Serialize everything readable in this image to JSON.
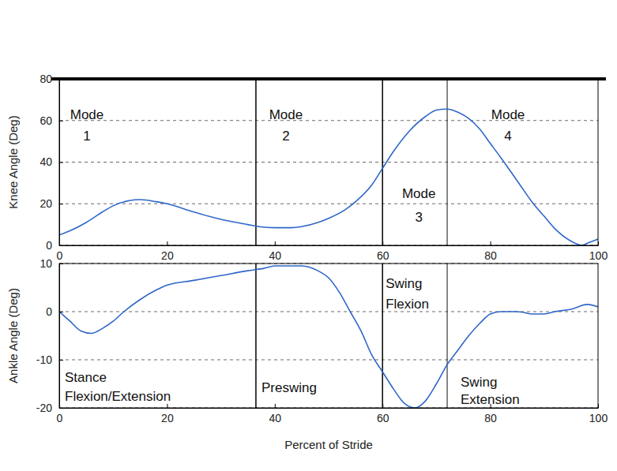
{
  "chart_data": [
    {
      "type": "line",
      "ylabel": "Knee Angle (Deg)",
      "x": [
        0,
        2,
        5,
        8,
        10,
        13,
        15,
        18,
        20,
        25,
        30,
        35,
        37,
        40,
        43,
        45,
        48,
        50,
        53,
        55,
        58,
        60,
        62,
        65,
        68,
        70,
        72,
        74,
        76,
        78,
        80,
        82,
        85,
        88,
        90,
        92,
        95,
        97,
        98,
        100
      ],
      "values": [
        5,
        7,
        11,
        16,
        19,
        21.5,
        22,
        21,
        20,
        16,
        12.5,
        10,
        9,
        8.5,
        8.5,
        9,
        11,
        13,
        17,
        21,
        29,
        37,
        45,
        55,
        62,
        65,
        65.5,
        64,
        61,
        56,
        49,
        42,
        31,
        20,
        14,
        8,
        2,
        0,
        1,
        3
      ],
      "color": "#2f67c8",
      "xlim": [
        0,
        100
      ],
      "xticks": [
        0,
        20,
        40,
        60,
        80,
        100
      ],
      "ylim": [
        0,
        80
      ],
      "yticks": [
        0,
        20,
        40,
        60,
        80
      ],
      "grid": true,
      "boundaries": [
        36.5,
        60,
        72
      ],
      "annotations": [
        "Mode 1",
        "Mode 2",
        "Mode 3",
        "Mode 4"
      ]
    },
    {
      "type": "line",
      "ylabel": "Ankle Angle (Deg)",
      "xlabel": "Percent of Stride",
      "x": [
        0,
        2,
        4,
        6,
        8,
        10,
        12,
        15,
        18,
        20,
        25,
        30,
        35,
        38,
        40,
        43,
        45,
        48,
        50,
        52,
        54,
        56,
        58,
        60,
        62,
        64,
        66,
        68,
        70,
        72,
        74,
        76,
        78,
        80,
        82,
        85,
        88,
        90,
        92,
        95,
        98,
        100
      ],
      "values": [
        0,
        -2,
        -4,
        -4.5,
        -3.5,
        -2,
        0,
        2.5,
        4.5,
        5.5,
        6.5,
        7.5,
        8.5,
        9,
        9.5,
        9.5,
        9.5,
        8.5,
        7,
        4,
        0,
        -4,
        -9,
        -12.5,
        -16,
        -19,
        -20,
        -18.5,
        -15,
        -11,
        -8,
        -5,
        -2.5,
        -0.5,
        0,
        0,
        -0.5,
        -0.5,
        0,
        0.5,
        1.5,
        1
      ],
      "color": "#2f67c8",
      "xlim": [
        0,
        100
      ],
      "xticks": [
        0,
        20,
        40,
        60,
        80,
        100
      ],
      "ylim": [
        -20,
        10
      ],
      "yticks": [
        -20,
        -10,
        0,
        10
      ],
      "grid": true,
      "boundaries": [
        36.5,
        60,
        72
      ],
      "annotations": [
        "Stance Flexion/Extension",
        "Preswing",
        "Swing Flexion",
        "Swing Extension"
      ]
    }
  ]
}
